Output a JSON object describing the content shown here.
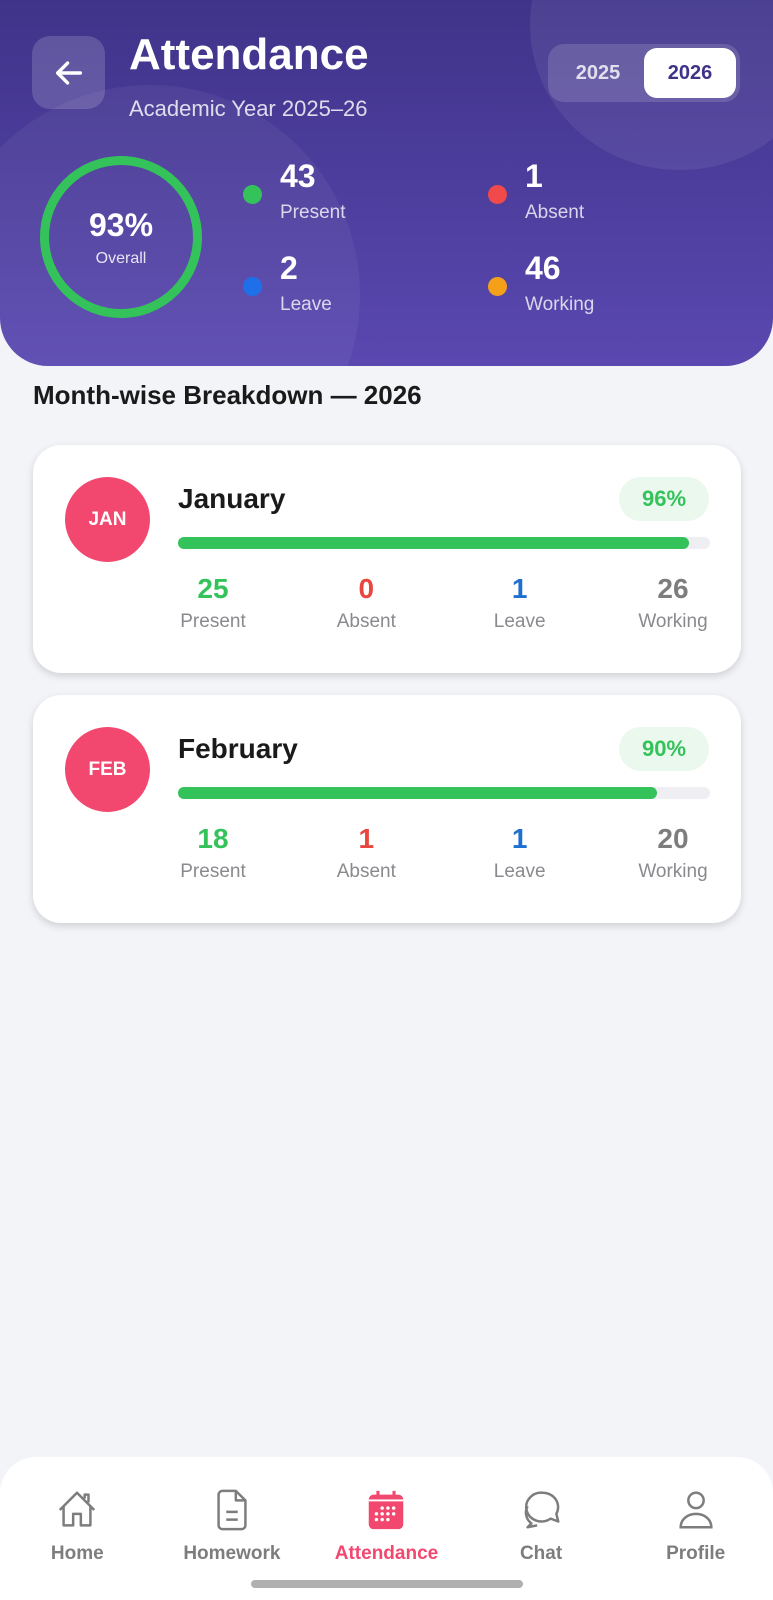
{
  "header": {
    "title": "Attendance",
    "subtitle": "Academic Year 2025–26",
    "years": [
      "2025",
      "2026"
    ],
    "selected_year": "2026"
  },
  "summary": {
    "overall_percent": "93%",
    "overall_label": "Overall",
    "overall_fraction": 0.93,
    "stats": [
      {
        "value": "43",
        "label": "Present",
        "color": "#34c35a"
      },
      {
        "value": "1",
        "label": "Absent",
        "color": "#f04a4a"
      },
      {
        "value": "2",
        "label": "Leave",
        "color": "#1f6fe8"
      },
      {
        "value": "46",
        "label": "Working",
        "color": "#f5a019"
      }
    ]
  },
  "section_title": "Month-wise Breakdown — 2026",
  "months": [
    {
      "abbr": "JAN",
      "name": "January",
      "percent": "96%",
      "progress": 96,
      "stats": [
        {
          "value": "25",
          "label": "Present",
          "color": "#34c35a"
        },
        {
          "value": "0",
          "label": "Absent",
          "color": "#e8463f"
        },
        {
          "value": "1",
          "label": "Leave",
          "color": "#1f6fd0"
        },
        {
          "value": "26",
          "label": "Working",
          "color": "#7d7d7d"
        }
      ]
    },
    {
      "abbr": "FEB",
      "name": "February",
      "percent": "90%",
      "progress": 90,
      "stats": [
        {
          "value": "18",
          "label": "Present",
          "color": "#34c35a"
        },
        {
          "value": "1",
          "label": "Absent",
          "color": "#e8463f"
        },
        {
          "value": "1",
          "label": "Leave",
          "color": "#1f6fd0"
        },
        {
          "value": "20",
          "label": "Working",
          "color": "#7d7d7d"
        }
      ]
    }
  ],
  "nav": {
    "items": [
      "Home",
      "Homework",
      "Attendance",
      "Chat",
      "Profile"
    ],
    "active": "Attendance",
    "accent": "#f2486f"
  }
}
